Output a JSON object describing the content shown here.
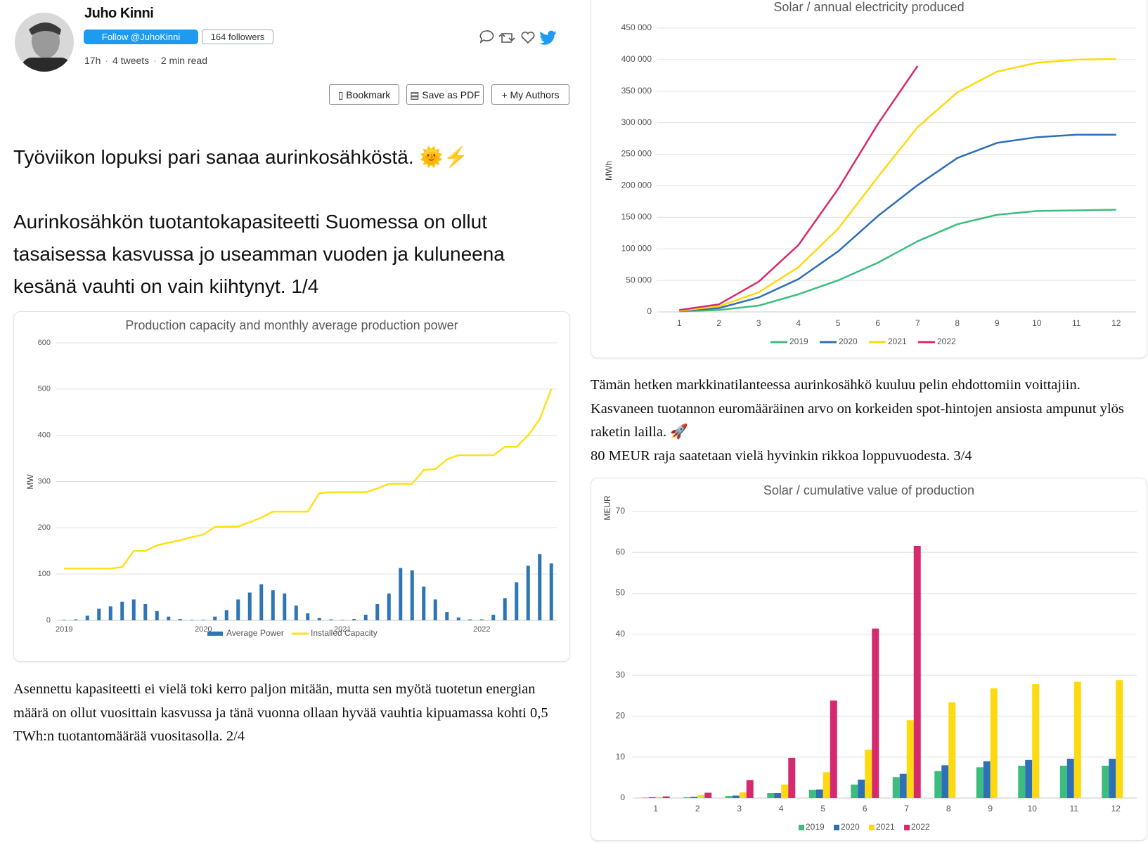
{
  "header": {
    "author": "Juho Kinni",
    "follow": "Follow @JuhoKinni",
    "followers": "164 followers",
    "meta": [
      "17h",
      "4 tweets",
      "2 min read"
    ],
    "buttons": [
      "Bookmark",
      "Save as PDF",
      "My Authors"
    ]
  },
  "tweets": [
    [
      "Työviikon lopuksi pari sanaa aurinkosähköstä. 🌞⚡",
      "Aurinkosähkön tuotantokapasiteetti Suomessa on ollut tasaisessa kasvussa jo useamman vuoden ja kuluneena kesänä vauhti on vain kiihtynyt. 1/4"
    ],
    [
      "Asennettu kapasiteetti ei vielä toki kerro paljon mitään, mutta sen myötä tuotetun energian määrä on ollut vuosittain kasvussa ja tänä vuonna ollaan hyvää vauhtia kipuamassa kohti 0,5 TWh:n tuotantomäärää vuositasolla. 2/4"
    ],
    [
      "Tämän hetken markkinatilanteessa aurinkosähkö kuuluu pelin ehdottomiin voittajiin. Kasvaneen tuotannon euromääräinen arvo on korkeiden spot-hintojen ansiosta ampunut ylös raketin lailla. 🚀",
      "80 MEUR raja saatetaan vielä hyvinkin rikkoa loppuvuodesta. 3/4"
    ]
  ],
  "chart_data": [
    {
      "type": "combo",
      "title": "Production capacity and monthly average production power",
      "ylabel": "MW",
      "categories": [
        "2019",
        null,
        null,
        null,
        null,
        null,
        null,
        null,
        null,
        null,
        null,
        null,
        "2020",
        null,
        null,
        null,
        null,
        null,
        null,
        null,
        null,
        null,
        null,
        null,
        "2021",
        null,
        null,
        null,
        null,
        null,
        null,
        null,
        null,
        null,
        null,
        null,
        "2022",
        null,
        null,
        null,
        null,
        null,
        null
      ],
      "series": [
        {
          "name": "Average Power",
          "type": "bar",
          "color": "#2e75b6",
          "values": [
            1,
            2,
            10,
            25,
            30,
            40,
            45,
            35,
            20,
            8,
            3,
            1,
            1,
            8,
            22,
            45,
            60,
            78,
            65,
            58,
            32,
            15,
            5,
            2,
            1,
            3,
            12,
            35,
            58,
            113,
            108,
            73,
            45,
            18,
            6,
            2,
            2,
            12,
            48,
            82,
            118,
            143,
            123
          ]
        },
        {
          "name": "Installed Capacity",
          "type": "line",
          "color": "#ffe01b",
          "values": [
            112,
            112,
            112,
            112,
            112,
            115,
            150,
            150,
            162,
            168,
            173,
            180,
            185,
            202,
            202,
            203,
            212,
            222,
            235,
            235,
            235,
            235,
            275,
            277,
            277,
            277,
            277,
            285,
            295,
            295,
            295,
            325,
            327,
            348,
            357,
            357,
            357,
            357,
            375,
            375,
            400,
            435,
            500
          ]
        }
      ],
      "ylim": [
        0,
        600
      ],
      "yticks": [
        0,
        100,
        200,
        300,
        400,
        500,
        600
      ],
      "grid": true,
      "legend": "bottom"
    },
    {
      "type": "line",
      "title": "Solar / annual electricity produced",
      "ylabel": "MWh",
      "categories": [
        "1",
        "2",
        "3",
        "4",
        "5",
        "6",
        "7",
        "8",
        "9",
        "10",
        "11",
        "12"
      ],
      "series": [
        {
          "name": "2019",
          "color": "#3dbd7d",
          "values": [
            1000,
            3000,
            10000,
            28000,
            50000,
            78000,
            112000,
            139000,
            154000,
            160000,
            161000,
            162000
          ]
        },
        {
          "name": "2020",
          "color": "#2f6fb5",
          "values": [
            2000,
            6000,
            23000,
            52000,
            96000,
            152000,
            201000,
            244000,
            268000,
            277000,
            281000,
            281000
          ]
        },
        {
          "name": "2021",
          "color": "#ffd90f",
          "values": [
            2000,
            9000,
            31000,
            71000,
            132000,
            214000,
            293000,
            348000,
            381000,
            395000,
            400000,
            401000
          ]
        },
        {
          "name": "2022",
          "color": "#d62a6e",
          "values": [
            3000,
            12000,
            48000,
            106000,
            195000,
            298000,
            390000,
            null,
            null,
            null,
            null,
            null
          ]
        }
      ],
      "ylim": [
        0,
        450000
      ],
      "yticks": [
        0,
        {
          "value": 50000,
          "label": "50 000"
        },
        {
          "value": 100000,
          "label": "100 000"
        },
        {
          "value": 150000,
          "label": "150 000"
        },
        {
          "value": 200000,
          "label": "200 000"
        },
        {
          "value": 250000,
          "label": "250 000"
        },
        {
          "value": 300000,
          "label": "300 000"
        },
        {
          "value": 350000,
          "label": "350 000"
        },
        {
          "value": 400000,
          "label": "400 000"
        },
        {
          "value": 450000,
          "label": "450 000"
        }
      ],
      "grid": true,
      "legend": "bottom"
    },
    {
      "type": "bar",
      "title": "Solar / cumulative value of production",
      "ylabel": "MEUR",
      "categories": [
        "1",
        "2",
        "3",
        "4",
        "5",
        "6",
        "7",
        "8",
        "9",
        "10",
        "11",
        "12"
      ],
      "series": [
        {
          "name": "2019",
          "color": "#3dbd7d",
          "values": [
            0.1,
            0.2,
            0.5,
            1.2,
            2,
            3.3,
            5.1,
            6.6,
            7.5,
            7.9,
            7.9,
            7.9
          ]
        },
        {
          "name": "2020",
          "color": "#2f6fb5",
          "values": [
            0.2,
            0.3,
            0.6,
            1.2,
            2.1,
            4.5,
            5.9,
            8,
            9,
            9.3,
            9.6,
            9.6
          ]
        },
        {
          "name": "2021",
          "color": "#ffd90f",
          "values": [
            0.3,
            0.7,
            1.4,
            3.3,
            6.3,
            11.8,
            19,
            23.4,
            26.8,
            27.8,
            28.4,
            28.8
          ]
        },
        {
          "name": "2022",
          "color": "#d62a6e",
          "values": [
            0.4,
            1.3,
            4.4,
            9.8,
            23.8,
            41.4,
            61.6,
            null,
            null,
            null,
            null,
            null
          ]
        }
      ],
      "ylim": [
        0,
        70
      ],
      "yticks": [
        0,
        10,
        20,
        30,
        40,
        50,
        60,
        70
      ],
      "grid": true,
      "legend": "bottom"
    }
  ]
}
